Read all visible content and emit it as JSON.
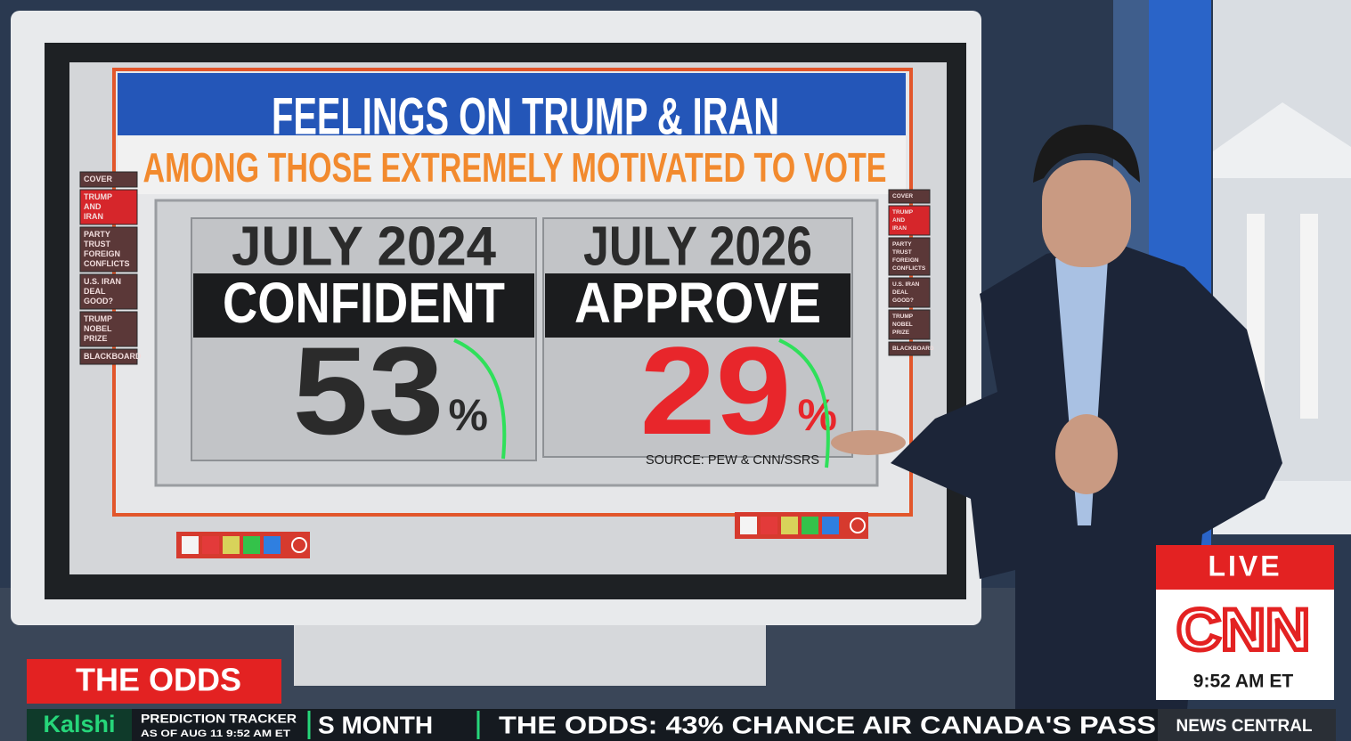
{
  "board": {
    "title": "FEELINGS ON TRUMP & IRAN",
    "subtitle": "AMONG THOSE EXTREMELY MOTIVATED TO VOTE",
    "panels": [
      {
        "period": "JULY 2024",
        "label": "CONFIDENT",
        "value": 53,
        "unit": "%",
        "value_color": "#2b2b2b"
      },
      {
        "period": "JULY 2026",
        "label": "APPROVE",
        "value": 29,
        "unit": "%",
        "value_color": "#e8262b"
      }
    ],
    "source": "SOURCE: PEW & CNN/SSRS",
    "menu": [
      [
        "COVER"
      ],
      [
        "TRUMP",
        "AND",
        "IRAN"
      ],
      [
        "PARTY",
        "TRUST",
        "FOREIGN",
        "CONFLICTS"
      ],
      [
        "U.S. IRAN",
        "DEAL",
        "GOOD?"
      ],
      [
        "TRUMP",
        "NOBEL",
        "PRIZE"
      ],
      [
        "BLACKBOARD"
      ]
    ]
  },
  "lower_third": {
    "segment": "THE ODDS",
    "brand": "Kalshi",
    "tracker": "PREDICTION TRACKER",
    "as_of": "AS OF AUG 11 9:52 AM ET",
    "ticker_prev": "S MONTH",
    "ticker": "THE ODDS: 43% CHANCE AIR CANADA'S PASS"
  },
  "bug": {
    "live": "LIVE",
    "network": "CNN",
    "time": "9:52 AM ET",
    "show": "NEWS CENTRAL"
  }
}
